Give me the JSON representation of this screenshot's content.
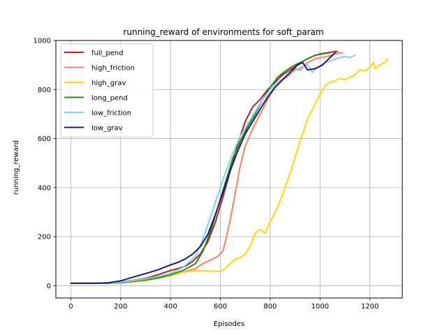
{
  "chart_data": {
    "type": "line",
    "title": "running_reward of environments for soft_param",
    "xlabel": "Episodes",
    "ylabel": "running_reward",
    "xlim": [
      -60,
      1330
    ],
    "ylim": [
      -50,
      1000
    ],
    "xticks": [
      0,
      200,
      400,
      600,
      800,
      1000,
      1200
    ],
    "yticks": [
      0,
      200,
      400,
      600,
      800,
      1000
    ],
    "grid": true,
    "legend_position": "upper-left",
    "series": [
      {
        "name": "full_pend",
        "color": "#b22222",
        "x": [
          0,
          100,
          150,
          200,
          250,
          300,
          350,
          400,
          430,
          460,
          490,
          520,
          550,
          580,
          610,
          640,
          670,
          700,
          730,
          760,
          790,
          820,
          850,
          880,
          910,
          940,
          970,
          1000,
          1030,
          1060,
          1070
        ],
        "y": [
          10,
          10,
          10,
          15,
          22,
          30,
          45,
          62,
          70,
          80,
          100,
          130,
          180,
          260,
          360,
          470,
          580,
          670,
          730,
          760,
          800,
          830,
          860,
          880,
          900,
          920,
          935,
          945,
          950,
          955,
          955
        ]
      },
      {
        "name": "high_friction",
        "color": "#fa8060",
        "x": [
          0,
          100,
          200,
          250,
          300,
          350,
          400,
          450,
          500,
          530,
          560,
          590,
          610,
          620,
          640,
          660,
          680,
          700,
          730,
          760,
          790,
          820,
          850,
          880,
          900,
          920,
          950,
          980,
          1000,
          1030,
          1060,
          1090
        ],
        "y": [
          10,
          10,
          12,
          18,
          22,
          30,
          40,
          55,
          70,
          90,
          105,
          120,
          140,
          180,
          270,
          380,
          490,
          570,
          640,
          700,
          760,
          810,
          840,
          860,
          885,
          880,
          910,
          925,
          930,
          935,
          945,
          950
        ]
      },
      {
        "name": "high_grav",
        "color": "#ffd700",
        "x": [
          0,
          100,
          200,
          300,
          400,
          450,
          500,
          550,
          600,
          620,
          640,
          660,
          680,
          700,
          720,
          740,
          760,
          780,
          800,
          830,
          860,
          890,
          920,
          950,
          980,
          1000,
          1020,
          1040,
          1060,
          1080,
          1100,
          1120,
          1140,
          1160,
          1180,
          1200,
          1215,
          1220,
          1240,
          1260,
          1270
        ],
        "y": [
          10,
          10,
          12,
          20,
          40,
          55,
          62,
          60,
          58,
          70,
          90,
          108,
          115,
          130,
          160,
          215,
          230,
          215,
          260,
          320,
          400,
          490,
          590,
          680,
          740,
          780,
          815,
          830,
          835,
          845,
          840,
          850,
          860,
          880,
          875,
          890,
          910,
          885,
          900,
          910,
          925
        ]
      },
      {
        "name": "long_pend",
        "color": "#228b22",
        "x": [
          0,
          100,
          200,
          250,
          300,
          350,
          400,
          450,
          500,
          530,
          560,
          590,
          620,
          650,
          680,
          710,
          740,
          770,
          800,
          830,
          860,
          890,
          920,
          950,
          980,
          1010,
          1040
        ],
        "y": [
          10,
          10,
          12,
          18,
          24,
          32,
          45,
          62,
          90,
          140,
          220,
          320,
          420,
          520,
          590,
          650,
          700,
          760,
          810,
          850,
          875,
          895,
          910,
          925,
          940,
          945,
          950
        ]
      },
      {
        "name": "low_friction",
        "color": "#87ceeb",
        "x": [
          0,
          100,
          200,
          300,
          350,
          400,
          450,
          500,
          530,
          560,
          590,
          620,
          650,
          680,
          710,
          740,
          770,
          800,
          830,
          860,
          890,
          920,
          950,
          970,
          990,
          1020,
          1050,
          1080,
          1100,
          1120,
          1140
        ],
        "y": [
          10,
          10,
          14,
          28,
          38,
          50,
          75,
          120,
          190,
          280,
          370,
          460,
          540,
          610,
          660,
          710,
          760,
          800,
          830,
          850,
          870,
          890,
          900,
          870,
          890,
          910,
          920,
          930,
          935,
          930,
          940
        ]
      },
      {
        "name": "low_grav",
        "color": "#191970",
        "x": [
          0,
          100,
          150,
          200,
          250,
          300,
          350,
          400,
          430,
          460,
          490,
          520,
          550,
          580,
          610,
          640,
          670,
          700,
          730,
          760,
          790,
          820,
          850,
          880,
          910,
          930,
          950,
          980,
          1010,
          1030,
          1050,
          1060
        ],
        "y": [
          10,
          10,
          12,
          20,
          35,
          50,
          65,
          85,
          95,
          110,
          130,
          160,
          210,
          290,
          380,
          470,
          550,
          620,
          670,
          720,
          770,
          810,
          840,
          870,
          900,
          910,
          880,
          885,
          900,
          920,
          940,
          950
        ]
      }
    ]
  }
}
